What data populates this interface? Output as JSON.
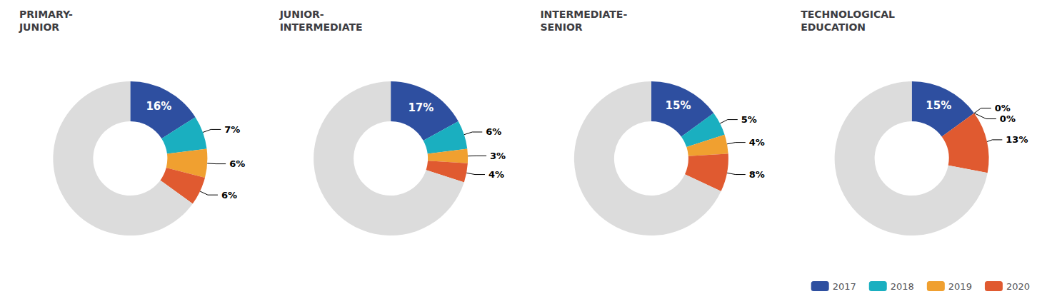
{
  "chart_data": [
    {
      "type": "pie",
      "title": "PRIMARY-\nJUNIOR",
      "categories": [
        "2017",
        "2018",
        "2019",
        "2020",
        null
      ],
      "values": [
        16,
        7,
        6,
        6,
        65
      ],
      "value_labels": [
        "16%",
        "7%",
        "6%",
        "6%",
        null
      ],
      "colors": [
        "#2e4fa0",
        "#1aafc0",
        "#f0a030",
        "#e05a30",
        "#dcdcdc"
      ],
      "data_labels": true
    },
    {
      "type": "pie",
      "title": "JUNIOR-\nINTERMEDIATE",
      "categories": [
        "2017",
        "2018",
        "2019",
        "2020",
        null
      ],
      "values": [
        17,
        6,
        3,
        4,
        70
      ],
      "value_labels": [
        "17%",
        "6%",
        "3%",
        "4%",
        null
      ],
      "colors": [
        "#2e4fa0",
        "#1aafc0",
        "#f0a030",
        "#e05a30",
        "#dcdcdc"
      ],
      "data_labels": true
    },
    {
      "type": "pie",
      "title": "INTERMEDIATE-\nSENIOR",
      "categories": [
        "2017",
        "2018",
        "2019",
        "2020",
        null
      ],
      "values": [
        15,
        5,
        4,
        8,
        68
      ],
      "value_labels": [
        "15%",
        "5%",
        "4%",
        "8%",
        null
      ],
      "colors": [
        "#2e4fa0",
        "#1aafc0",
        "#f0a030",
        "#e05a30",
        "#dcdcdc"
      ],
      "data_labels": true
    },
    {
      "type": "pie",
      "title": "TECHNOLOGICAL\nEDUCATION",
      "categories": [
        "2017",
        "2018",
        "2019",
        "2020",
        null
      ],
      "values": [
        15,
        0,
        0,
        13,
        72
      ],
      "value_labels": [
        "15%",
        "0%",
        "0%",
        "13%",
        null
      ],
      "colors": [
        "#2e4fa0",
        "#1aafc0",
        "#f0a030",
        "#e05a30",
        "#dcdcdc"
      ],
      "data_labels": true,
      "legend": "lower right"
    }
  ]
}
